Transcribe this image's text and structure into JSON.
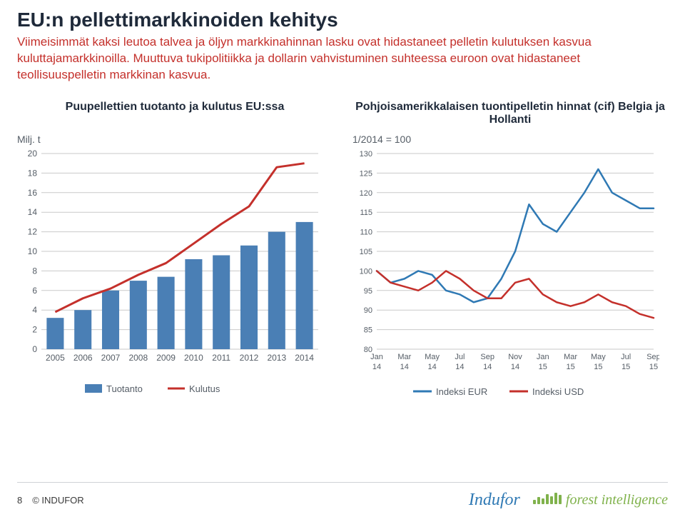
{
  "page": {
    "number": 8,
    "copyright": "© INDUFOR"
  },
  "title": "EU:n pellettimarkkinoiden kehitys",
  "description": "Viimeisimmät kaksi leutoa talvea ja öljyn markkinahinnan lasku ovat hidastaneet pelletin kulutuksen kasvua kuluttajamarkkinoilla. Muuttuva tukipolitiikka ja dollarin vahvistuminen suhteessa euroon ovat hidastaneet teollisuuspelletin markkinan kasvua.",
  "left_chart": {
    "type": "bar+line",
    "title": "Puupellettien tuotanto ja kulutus EU:ssa",
    "unit_label": "Milj. t",
    "unit_fontsize": 14,
    "title_fontsize": 16,
    "label_fontsize": 12,
    "categories": [
      "2005",
      "2006",
      "2007",
      "2008",
      "2009",
      "2010",
      "2011",
      "2012",
      "2013",
      "2014"
    ],
    "bars": {
      "label": "Tuotanto",
      "color": "#4a7fb5",
      "values": [
        3.2,
        4.0,
        6.0,
        7.0,
        7.4,
        9.2,
        9.6,
        10.6,
        12.0,
        13.0
      ]
    },
    "line": {
      "label": "Kulutus",
      "color": "#c4302b",
      "width": 3,
      "values": [
        3.8,
        5.2,
        6.2,
        7.6,
        8.8,
        10.8,
        12.8,
        14.6,
        18.6,
        19.0
      ]
    },
    "ylim": [
      0,
      20
    ],
    "ytick_step": 2,
    "grid_color": "#c9c9c9",
    "background_color": "#ffffff",
    "bar_width": 0.62,
    "legend": {
      "position": "bottom",
      "fontsize": 13
    }
  },
  "right_chart": {
    "type": "line",
    "title": "Pohjoisamerikkalaisen tuontipelletin hinnat (cif) Belgia ja Hollanti",
    "unit_label": "1/2014 = 100",
    "unit_fontsize": 14,
    "title_fontsize": 16,
    "label_fontsize": 11,
    "x_labels": [
      "Jan 14",
      "Mar 14",
      "May 14",
      "Jul 14",
      "Sep 14",
      "Nov 14",
      "Jan 15",
      "Mar 15",
      "May 15",
      "Jul 15",
      "Sep 15"
    ],
    "series": [
      {
        "label": "Indeksi EUR",
        "color": "#2f79b4",
        "width": 2.5,
        "values": [
          100,
          97,
          98,
          100,
          99,
          95,
          94,
          92,
          93,
          98,
          105,
          117,
          112,
          110,
          115,
          120,
          126,
          120,
          118,
          116,
          116
        ]
      },
      {
        "label": "Indeksi USD",
        "color": "#c4302b",
        "width": 2.5,
        "values": [
          100,
          97,
          96,
          95,
          97,
          100,
          98,
          95,
          93,
          93,
          97,
          98,
          94,
          92,
          91,
          92,
          94,
          92,
          91,
          89,
          88
        ]
      }
    ],
    "ylim": [
      80,
      130
    ],
    "ytick_step": 5,
    "grid_color": "#c9c9c9",
    "background_color": "#ffffff",
    "legend": {
      "position": "bottom",
      "fontsize": 13
    }
  },
  "logos": {
    "indufor": "Indufor",
    "forest_intelligence": "forest intelligence",
    "fi_bar_color": "#80b24c",
    "fi_bar_heights": [
      6,
      10,
      8,
      14,
      11,
      16,
      13
    ]
  }
}
